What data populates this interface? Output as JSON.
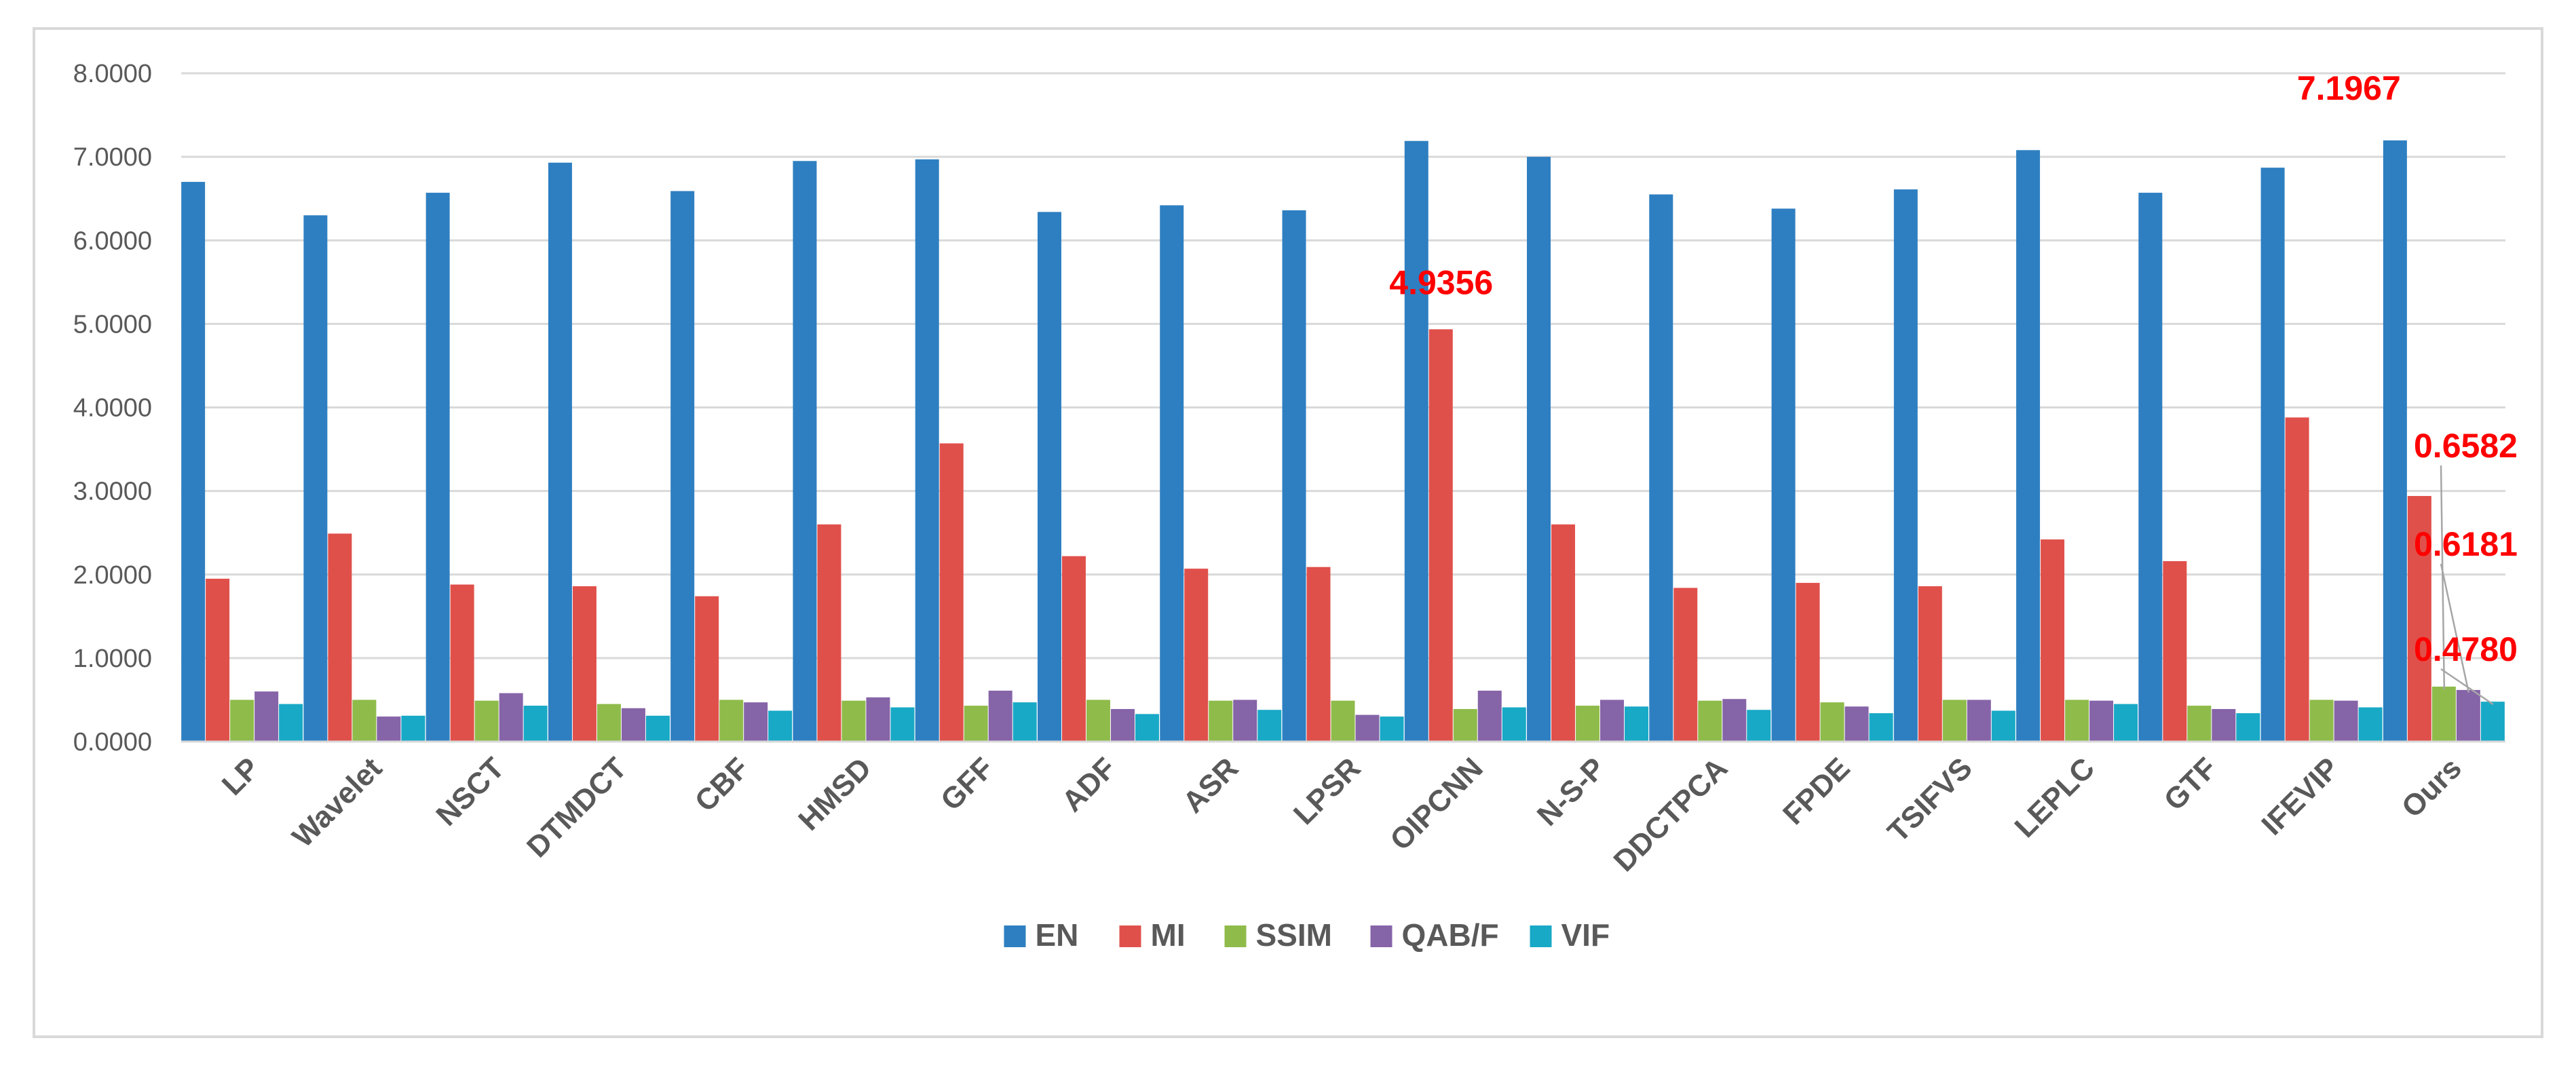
{
  "chart_data": {
    "type": "bar",
    "title": "",
    "xlabel": "",
    "ylabel": "",
    "ylim": [
      0,
      8
    ],
    "yticks": [
      "0.0000",
      "1.0000",
      "2.0000",
      "3.0000",
      "4.0000",
      "5.0000",
      "6.0000",
      "7.0000",
      "8.0000"
    ],
    "grid": true,
    "legend_position": "bottom",
    "categories": [
      "LP",
      "Wavelet",
      "NSCT",
      "DTMDCT",
      "CBF",
      "HMSD",
      "GFF",
      "ADF",
      "ASR",
      "LPSR",
      "OIPCNN",
      "N-S-P",
      "DDCTPCA",
      "FPDE",
      "TSIFVS",
      "LEPLC",
      "GTF",
      "IFEVIP",
      "Ours"
    ],
    "series": [
      {
        "name": "EN",
        "color": "#2e7fc1",
        "values": [
          6.7,
          6.3,
          6.57,
          6.93,
          6.59,
          6.95,
          6.97,
          6.34,
          6.42,
          6.36,
          7.19,
          7.0,
          6.55,
          6.38,
          6.61,
          7.08,
          6.57,
          6.87,
          7.1967
        ]
      },
      {
        "name": "MI",
        "color": "#e0504b",
        "values": [
          1.95,
          2.49,
          1.88,
          1.86,
          1.74,
          2.6,
          3.57,
          2.22,
          2.07,
          2.09,
          4.9356,
          2.6,
          1.84,
          1.9,
          1.86,
          2.42,
          2.16,
          3.88,
          2.94
        ]
      },
      {
        "name": "SSIM",
        "color": "#8fbb4b",
        "values": [
          0.5,
          0.5,
          0.49,
          0.45,
          0.5,
          0.49,
          0.43,
          0.5,
          0.49,
          0.49,
          0.39,
          0.43,
          0.49,
          0.47,
          0.5,
          0.5,
          0.43,
          0.5,
          0.6582
        ]
      },
      {
        "name": "QAB/F",
        "color": "#8664a8",
        "values": [
          0.6,
          0.3,
          0.58,
          0.4,
          0.47,
          0.53,
          0.61,
          0.39,
          0.5,
          0.32,
          0.61,
          0.5,
          0.51,
          0.42,
          0.5,
          0.49,
          0.39,
          0.49,
          0.6181
        ]
      },
      {
        "name": "VIF",
        "color": "#18a9c6",
        "values": [
          0.45,
          0.31,
          0.43,
          0.31,
          0.37,
          0.41,
          0.47,
          0.33,
          0.38,
          0.3,
          0.41,
          0.42,
          0.38,
          0.34,
          0.37,
          0.45,
          0.34,
          0.41,
          0.478
        ]
      }
    ],
    "annotations": [
      {
        "text": "7.1967",
        "category": "Ours",
        "series": "EN"
      },
      {
        "text": "4.9356",
        "category": "OIPCNN",
        "series": "MI"
      },
      {
        "text": "0.6582",
        "category": "Ours",
        "series": "SSIM"
      },
      {
        "text": "0.6181",
        "category": "Ours",
        "series": "QAB/F"
      },
      {
        "text": "0.4780",
        "category": "Ours",
        "series": "VIF"
      }
    ],
    "colors": {
      "annotation": "#ff0000",
      "grid": "#d9d9d9",
      "text": "#595959"
    }
  }
}
